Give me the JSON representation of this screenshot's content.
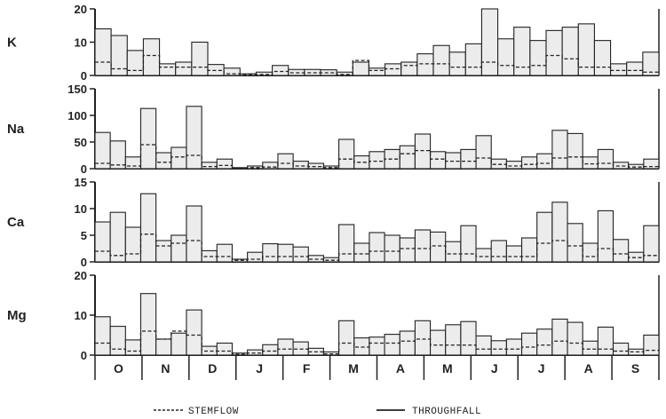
{
  "colors": {
    "ink": "#222222",
    "fill": "#ececec",
    "background": "#ffffff"
  },
  "chart_data": [
    {
      "type": "bar",
      "label": "K",
      "ylim": [
        0,
        20
      ],
      "yticks": [
        "0",
        "10",
        "20"
      ],
      "throughfall": [
        14,
        12,
        7.5,
        11,
        3.5,
        4,
        10,
        3.3,
        2.2,
        0.5,
        1,
        3,
        1.8,
        1.8,
        1.7,
        1,
        4,
        2.2,
        3.5,
        4,
        6.5,
        9,
        7,
        9.5,
        21,
        11,
        14.5,
        10.5,
        13.5,
        14.5,
        15.5,
        10.5,
        3.5,
        4,
        7
      ],
      "stemflow": [
        4,
        2,
        1.5,
        6,
        2.5,
        2.5,
        2.5,
        1.5,
        0.5,
        0.2,
        0.3,
        1.2,
        0.8,
        0.8,
        0.8,
        0.3,
        4.5,
        1.5,
        2,
        3,
        3.5,
        3.5,
        2.5,
        2.5,
        4,
        3,
        2.5,
        3,
        6,
        5,
        2.5,
        2.5,
        1.5,
        1.5,
        1
      ]
    },
    {
      "type": "bar",
      "label": "Na",
      "ylim": [
        0,
        150
      ],
      "yticks": [
        "0",
        "50",
        "100",
        "150"
      ],
      "throughfall": [
        68,
        52,
        22,
        113,
        30,
        40,
        117,
        12,
        18,
        2,
        5,
        12,
        28,
        14,
        10,
        5,
        55,
        24,
        32,
        36,
        43,
        65,
        32,
        30,
        36,
        62,
        18,
        14,
        22,
        28,
        72,
        66,
        22,
        36,
        12,
        8,
        18
      ],
      "stemflow": [
        10,
        7,
        5,
        45,
        12,
        22,
        25,
        4,
        6,
        1,
        2,
        3,
        10,
        5,
        4,
        2,
        18,
        12,
        14,
        18,
        28,
        34,
        18,
        14,
        14,
        20,
        8,
        5,
        8,
        10,
        20,
        22,
        9,
        10,
        5,
        3,
        4
      ]
    },
    {
      "type": "bar",
      "label": "Ca",
      "ylim": [
        0,
        15
      ],
      "yticks": [
        "0",
        "5",
        "10",
        "15"
      ],
      "throughfall": [
        7.5,
        9.3,
        6.5,
        12.8,
        4,
        5,
        10.5,
        2.1,
        3.3,
        0.5,
        1.8,
        3.4,
        3.3,
        2.8,
        1.2,
        0.8,
        7,
        3.5,
        5.5,
        5,
        4.5,
        6,
        5.6,
        3.8,
        6.8,
        2.5,
        4,
        3,
        4.5,
        9.3,
        11.2,
        7.2,
        3.5,
        9.6,
        4.2,
        1.8,
        6.8
      ],
      "stemflow": [
        2,
        1.2,
        1.5,
        5.2,
        3,
        3.5,
        4,
        1,
        1,
        0.3,
        0.5,
        1,
        1,
        1,
        0.5,
        0.3,
        1.5,
        1.5,
        2,
        2,
        2.5,
        2.5,
        3,
        1.5,
        1.5,
        1,
        1,
        1,
        1,
        3.5,
        4,
        3,
        1,
        2.5,
        1.5,
        0.8,
        1.2
      ]
    },
    {
      "type": "bar",
      "label": "Mg",
      "ylim": [
        0,
        20
      ],
      "yticks": [
        "0",
        "10",
        "20"
      ],
      "throughfall": [
        9.6,
        7.2,
        3.8,
        15.4,
        4,
        5.5,
        11.3,
        2.2,
        3,
        0.5,
        1.3,
        2.6,
        4,
        3.3,
        1.7,
        0.8,
        8.6,
        4.3,
        4.5,
        5.2,
        6,
        8.6,
        6.2,
        7.6,
        8.4,
        4.8,
        3.6,
        4,
        5.5,
        6.5,
        9,
        8.2,
        3.5,
        7,
        3,
        1.5,
        5
      ],
      "stemflow": [
        3,
        1.5,
        1,
        6,
        4,
        6,
        5,
        1,
        1,
        0.2,
        0.5,
        1,
        1.5,
        1.5,
        0.8,
        0.3,
        3,
        2,
        3,
        3,
        3.5,
        4,
        2.5,
        2.5,
        2.5,
        1.5,
        1.5,
        1.5,
        2,
        2.5,
        3.5,
        3,
        1.5,
        1.5,
        1,
        0.8,
        1.2
      ]
    }
  ],
  "x_axis": {
    "months": [
      "O",
      "N",
      "D",
      "J",
      "F",
      "M",
      "A",
      "M",
      "J",
      "J",
      "A",
      "S"
    ]
  },
  "legend": {
    "stemflow": "STEMFLOW",
    "throughfall": "THROUGHFALL"
  }
}
